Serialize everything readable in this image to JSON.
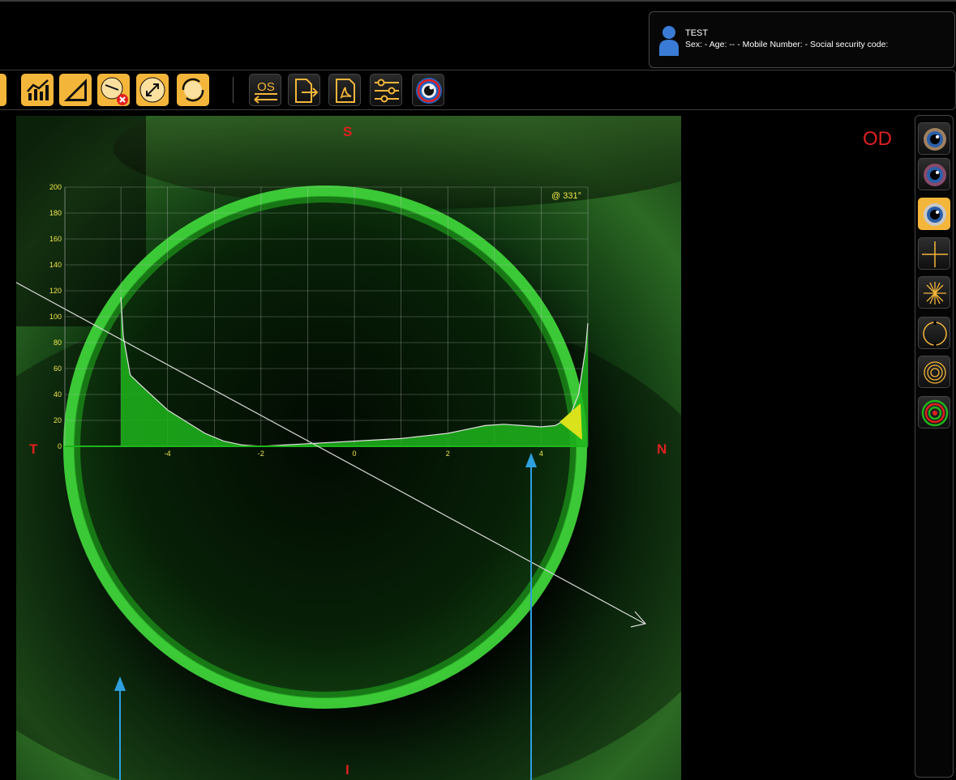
{
  "patient": {
    "name": "TEST",
    "info": "Sex:  - Age: -- - Mobile Number:  - Social security code:"
  },
  "toolbar": {
    "os_label": "OS",
    "buttons": [
      "partial-tool-icon",
      "chart-icon",
      "ruler-icon",
      "delete-measure-icon",
      "expand-icon",
      "rotate-icon",
      "os-switch-icon",
      "export-icon",
      "pdf-icon",
      "settings-sliders-icon",
      "eye-view-icon"
    ]
  },
  "viewer": {
    "eye": "OD",
    "orientation": {
      "superior": "S",
      "inferior": "I",
      "temporal": "T",
      "nasal": "N"
    },
    "angle_label": "@ 331°"
  },
  "chart_data": {
    "type": "area",
    "title": "",
    "xlabel": "",
    "ylabel": "",
    "xlim": [
      -6.2,
      5.0
    ],
    "ylim": [
      0,
      200
    ],
    "x_ticks": [
      -4,
      -2,
      0,
      2,
      4
    ],
    "x_tick_labels": [
      "-4",
      "-2",
      "0",
      "2",
      "4"
    ],
    "y_ticks": [
      0,
      20,
      40,
      60,
      80,
      100,
      120,
      140,
      160,
      180,
      200
    ],
    "y_tick_labels": [
      "0",
      "20",
      "40",
      "60",
      "80",
      "100",
      "120",
      "140",
      "160",
      "180",
      "200"
    ],
    "annotation": "@ 331°",
    "grid": true,
    "series": [
      {
        "x": [
          -5.0,
          -4.95,
          -4.8,
          -4.6,
          -4.3,
          -4.0,
          -3.6,
          -3.2,
          -2.8,
          -2.4,
          -2.0,
          -1.5,
          -1.0,
          -0.5,
          0.0,
          0.5,
          1.0,
          1.5,
          2.0,
          2.4,
          2.8,
          3.2,
          3.6,
          4.0,
          4.3,
          4.6,
          4.8,
          4.95,
          5.0
        ],
        "values": [
          115,
          85,
          55,
          48,
          38,
          28,
          19,
          10,
          4,
          1,
          0,
          1,
          2,
          3,
          4,
          5,
          6,
          8,
          10,
          13,
          16,
          17,
          16,
          15,
          16,
          22,
          40,
          75,
          95
        ]
      }
    ],
    "colors": {
      "fill": "#1fb51c",
      "line": "#e0e0e0",
      "grid": "#c0c0c0",
      "ticks": "#f1e74a",
      "arrow": "#2ea0e0",
      "pointer": "#d9e21a"
    }
  },
  "right_panel": {
    "buttons": [
      "eye-image-icon-1",
      "eye-image-icon-2",
      "eye-image-icon-3",
      "crosshair-icon",
      "radial-lines-icon",
      "circle-quadrants-icon",
      "concentric-rings-icon",
      "red-green-rings-icon"
    ]
  }
}
